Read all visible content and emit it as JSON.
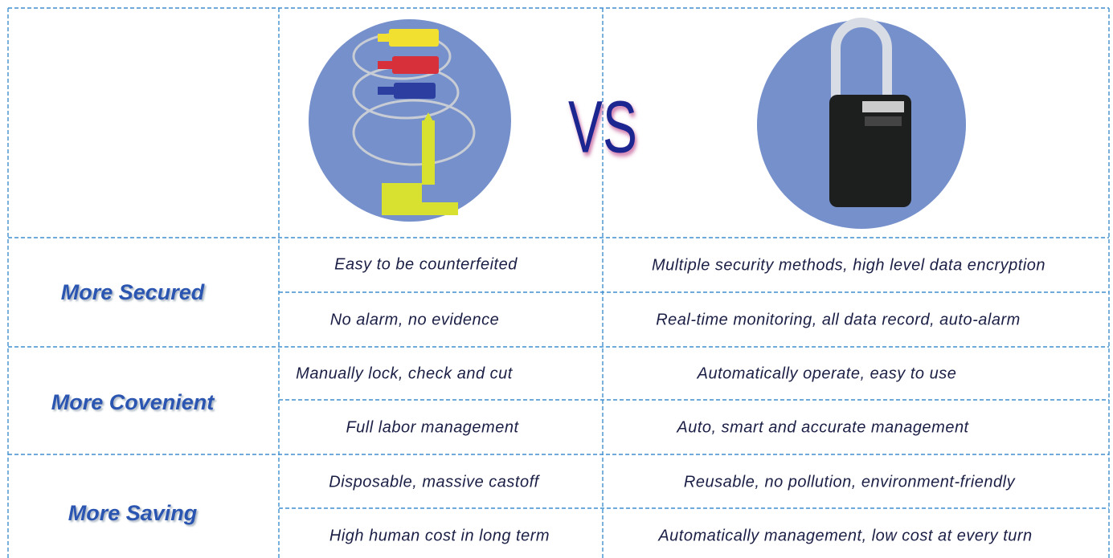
{
  "header": {
    "vs": "VS"
  },
  "rows": [
    {
      "label": "More Secured",
      "items": [
        [
          "Easy to be counterfeited",
          "Multiple security methods, high level data encryption"
        ],
        [
          "No alarm, no evidence",
          "Real-time monitoring, all data record, auto-alarm"
        ]
      ]
    },
    {
      "label": "More Covenient",
      "items": [
        [
          "Manually lock, check and cut",
          "Automatically operate, easy to use"
        ],
        [
          "Full labor management",
          "Auto, smart and accurate management"
        ]
      ]
    },
    {
      "label": "More Saving",
      "items": [
        [
          "Disposable, massive castoff",
          "Reusable, no pollution, environment-friendly"
        ],
        [
          "High human cost in long term",
          "Automatically management, low cost at every turn"
        ]
      ]
    }
  ]
}
